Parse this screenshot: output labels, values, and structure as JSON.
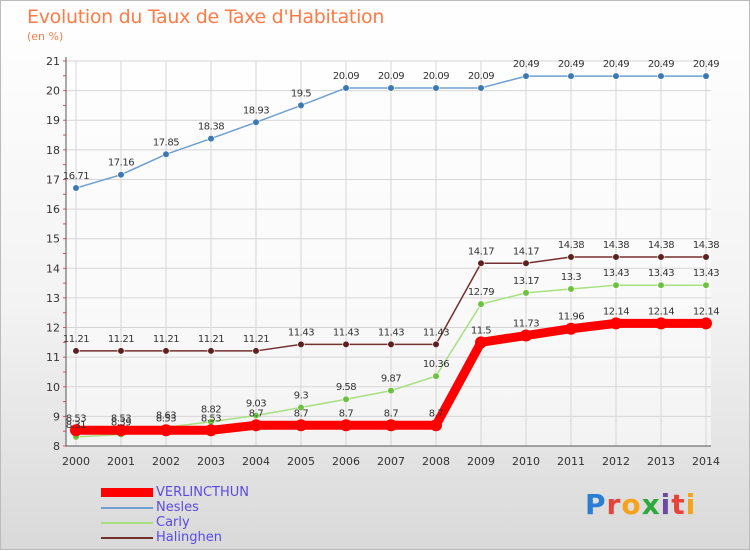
{
  "header": {
    "title": "Evolution du Taux de Taxe d'Habitation",
    "unit": "(en %)"
  },
  "brand": {
    "logo_text": "Proxiti",
    "letter_colors": [
      "#2a7fd4",
      "#e8433a",
      "#f7a21b",
      "#2eaa3c",
      "#6b4ba1",
      "#e8433a",
      "#f7a21b"
    ]
  },
  "chart_data": {
    "type": "line",
    "title": "Evolution du Taux de Taxe d'Habitation",
    "ylabel": "(en %)",
    "xlabel": "",
    "ylim": [
      8,
      21
    ],
    "y_ticks": [
      8,
      9,
      10,
      11,
      12,
      13,
      14,
      15,
      16,
      17,
      18,
      19,
      20,
      21
    ],
    "grid": true,
    "legend_position": "bottom-left",
    "categories": [
      "2000",
      "2001",
      "2002",
      "2003",
      "2004",
      "2005",
      "2006",
      "2007",
      "2008",
      "2009",
      "2010",
      "2011",
      "2012",
      "2013",
      "2014"
    ],
    "series": [
      {
        "name": "Nesles",
        "color": "#6f9fd0",
        "marker_color": "#3c79b4",
        "values": [
          16.71,
          17.16,
          17.85,
          18.38,
          18.93,
          19.5,
          20.09,
          20.09,
          20.09,
          20.09,
          20.49,
          20.49,
          20.49,
          20.49,
          20.49
        ],
        "labels": [
          "16.71",
          "17.16",
          "17.85",
          "18.38",
          "18.93",
          "19.5",
          "20.09",
          "20.09",
          "20.09",
          "20.09",
          "20.49",
          "20.49",
          "20.49",
          "20.49",
          "20.49"
        ]
      },
      {
        "name": "Halinghen",
        "color": "#74302f",
        "marker_color": "#5c2020",
        "values": [
          11.21,
          11.21,
          11.21,
          11.21,
          11.21,
          11.43,
          11.43,
          11.43,
          11.43,
          14.17,
          14.17,
          14.38,
          14.38,
          14.38,
          14.38
        ],
        "labels": [
          "11.21",
          "11.21",
          "11.21",
          "11.21",
          "11.21",
          "11.43",
          "11.43",
          "11.43",
          "11.43",
          "14.17",
          "14.17",
          "14.38",
          "14.38",
          "14.38",
          "14.38"
        ]
      },
      {
        "name": "Carly",
        "color": "#a6e07f",
        "marker_color": "#6cc23f",
        "values": [
          8.31,
          8.39,
          8.63,
          8.82,
          9.03,
          9.3,
          9.58,
          9.87,
          10.36,
          12.79,
          13.17,
          13.3,
          13.43,
          13.43,
          13.43
        ],
        "labels": [
          "8.31",
          "8.39",
          "8.63",
          "8.82",
          "9.03",
          "9.3",
          "9.58",
          "9.87",
          "10.36",
          "12.79",
          "13.17",
          "13.3",
          "13.43",
          "13.43",
          "13.43"
        ]
      },
      {
        "name": "VERLINCTHUN",
        "color": "#ff0000",
        "marker_color": "#ff0000",
        "values": [
          8.53,
          8.53,
          8.53,
          8.53,
          8.7,
          8.7,
          8.7,
          8.7,
          8.7,
          11.5,
          11.73,
          11.96,
          12.14,
          12.14,
          12.14
        ],
        "labels": [
          "8.53",
          "8.53",
          "8.53",
          "8.53",
          "8.7",
          "8.7",
          "8.7",
          "8.7",
          "8.7",
          "11.5",
          "11.73",
          "11.96",
          "12.14",
          "12.14",
          "12.14"
        ]
      }
    ],
    "legend": [
      {
        "name": "VERLINCTHUN",
        "color": "#ff0000",
        "text_color": "#5a4be0",
        "thick": true
      },
      {
        "name": "Nesles",
        "color": "#6f9fd0",
        "text_color": "#5a4be0",
        "thick": false
      },
      {
        "name": "Carly",
        "color": "#a6e07f",
        "text_color": "#5a4be0",
        "thick": false
      },
      {
        "name": "Halinghen",
        "color": "#74302f",
        "text_color": "#5a4be0",
        "thick": false
      }
    ]
  }
}
